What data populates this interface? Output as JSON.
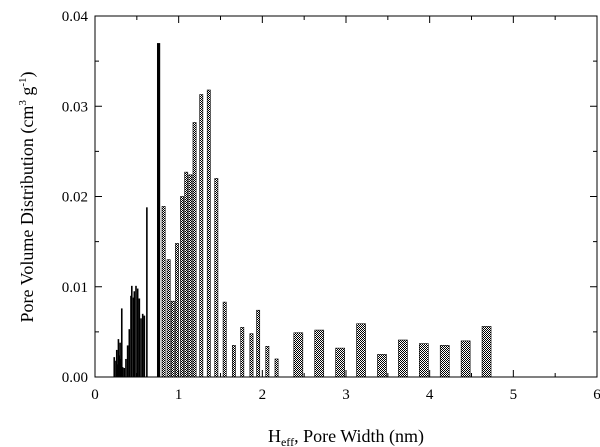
{
  "chart_data": {
    "type": "bar",
    "xlabel_main": "H",
    "xlabel_sub": "eff",
    "xlabel_rest": ", Pore Width (nm)",
    "ylabel_main": "Pore Volume Distribution (cm",
    "ylabel_sup1": "3",
    "ylabel_mid": " g",
    "ylabel_sup2": "-1",
    "ylabel_end": ")",
    "xlim": [
      0,
      6
    ],
    "ylim": [
      0,
      0.04
    ],
    "x_ticks": [
      "0",
      "1",
      "2",
      "3",
      "4",
      "5",
      "6"
    ],
    "y_ticks": [
      "0.00",
      "0.01",
      "0.02",
      "0.03",
      "0.04"
    ],
    "grid": false,
    "fill_pattern": "hatched",
    "series": [
      {
        "points": [
          [
            0.23,
            0.0022
          ],
          [
            0.25,
            0.0018
          ],
          [
            0.26,
            0.003
          ],
          [
            0.27,
            0.0014
          ],
          [
            0.28,
            0.0042
          ],
          [
            0.29,
            0.0024
          ],
          [
            0.3,
            0.0038
          ],
          [
            0.31,
            0.002
          ],
          [
            0.32,
            0.0076
          ],
          [
            0.33,
            0.0011
          ],
          [
            0.35,
            0.001
          ],
          [
            0.37,
            0.002
          ],
          [
            0.39,
            0.0035
          ],
          [
            0.41,
            0.0053
          ],
          [
            0.43,
            0.009
          ],
          [
            0.44,
            0.0101
          ],
          [
            0.46,
            0.0088
          ],
          [
            0.47,
            0.0095
          ],
          [
            0.49,
            0.0101
          ],
          [
            0.51,
            0.0098
          ],
          [
            0.53,
            0.0087
          ],
          [
            0.55,
            0.0065
          ],
          [
            0.57,
            0.007
          ],
          [
            0.59,
            0.0068
          ],
          [
            0.62,
            0.0188
          ],
          [
            0.76,
            0.037
          ],
          [
            0.82,
            0.0189
          ],
          [
            0.88,
            0.013
          ],
          [
            0.93,
            0.0084
          ],
          [
            0.98,
            0.0148
          ],
          [
            1.04,
            0.02
          ],
          [
            1.09,
            0.0227
          ],
          [
            1.14,
            0.0224
          ],
          [
            1.19,
            0.0282
          ],
          [
            1.27,
            0.0313
          ],
          [
            1.36,
            0.0318
          ],
          [
            1.45,
            0.022
          ],
          [
            1.55,
            0.0083
          ],
          [
            1.66,
            0.0035
          ],
          [
            1.76,
            0.0055
          ],
          [
            1.87,
            0.0048
          ],
          [
            1.95,
            0.0074
          ],
          [
            2.06,
            0.0034
          ],
          [
            2.17,
            0.002
          ],
          [
            2.43,
            0.0049
          ],
          [
            2.68,
            0.0052
          ],
          [
            2.93,
            0.0032
          ],
          [
            3.18,
            0.0059
          ],
          [
            3.43,
            0.0025
          ],
          [
            3.68,
            0.0041
          ],
          [
            3.93,
            0.0037
          ],
          [
            4.18,
            0.0035
          ],
          [
            4.43,
            0.004
          ],
          [
            4.68,
            0.0056
          ]
        ]
      }
    ]
  }
}
